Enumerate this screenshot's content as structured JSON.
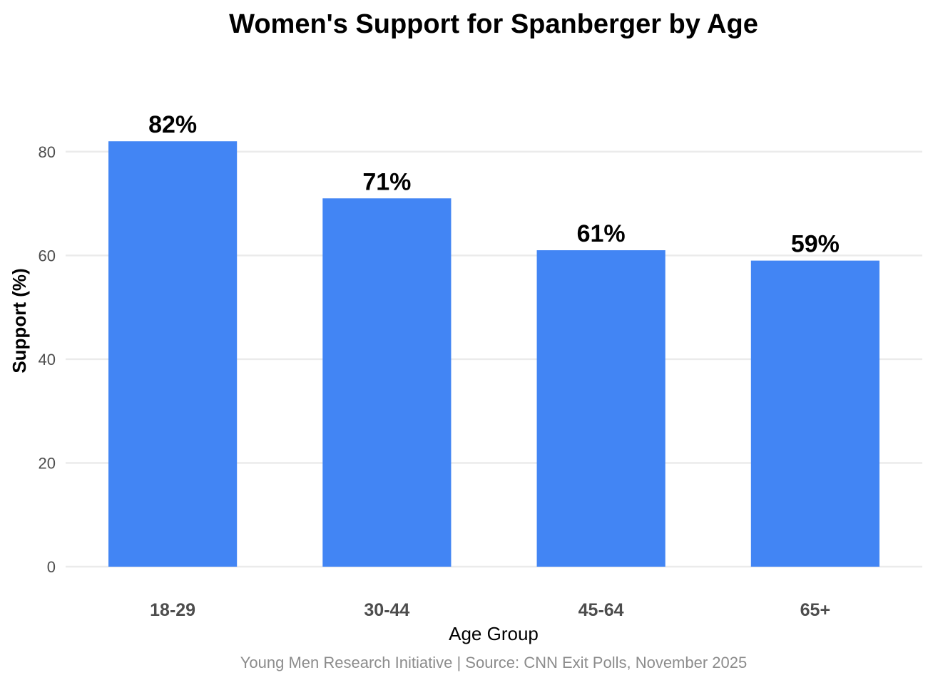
{
  "chart_data": {
    "type": "bar",
    "title": "Women's Support for Spanberger by Age",
    "xlabel": "Age Group",
    "ylabel": "Support (%)",
    "categories": [
      "18-29",
      "30-44",
      "45-64",
      "65+"
    ],
    "values": [
      82,
      71,
      61,
      59
    ],
    "data_labels": [
      "82%",
      "71%",
      "61%",
      "59%"
    ],
    "ylim": [
      0,
      90
    ],
    "yticks": [
      0,
      20,
      40,
      60,
      80
    ],
    "ytick_labels": [
      "0",
      "20",
      "40",
      "60",
      "80"
    ],
    "grid": true,
    "legend": "none",
    "caption": "Young Men Research Initiative | Source: CNN Exit Polls, November 2025",
    "bar_color": "#4285f4"
  }
}
